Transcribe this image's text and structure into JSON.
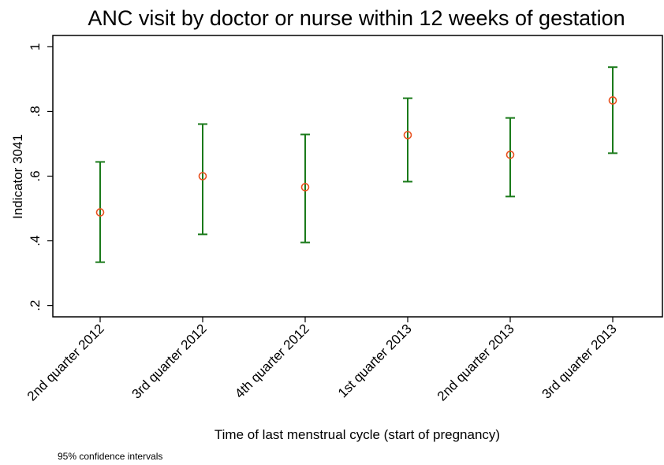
{
  "chart_data": {
    "type": "errorbar",
    "title": "ANC visit by doctor or nurse within 12 weeks of gestation",
    "y_label": "Indicator 3041",
    "x_label": "Time of last menstrual cycle (start of pregnancy)",
    "note": "95% confidence intervals",
    "categories": [
      "2nd quarter 2012",
      "3rd quarter 2012",
      "4th quarter 2012",
      "1st quarter 2013",
      "2nd quarter 2013",
      "3rd quarter 2013"
    ],
    "series": [
      {
        "values": [
          0.488,
          0.6,
          0.566,
          0.727,
          0.666,
          0.834
        ],
        "lower": [
          0.334,
          0.42,
          0.395,
          0.583,
          0.537,
          0.671
        ],
        "upper": [
          0.644,
          0.761,
          0.729,
          0.841,
          0.78,
          0.937
        ],
        "color": "#e8501e",
        "bar_color": "#1a7a1a"
      }
    ],
    "ylim": [
      0.165,
      1.035
    ],
    "yticks": [
      {
        "value": 0.2,
        "label": ".2"
      },
      {
        "value": 0.4,
        "label": ".4"
      },
      {
        "value": 0.6,
        "label": ".6"
      },
      {
        "value": 0.8,
        "label": ".8"
      },
      1
    ]
  }
}
